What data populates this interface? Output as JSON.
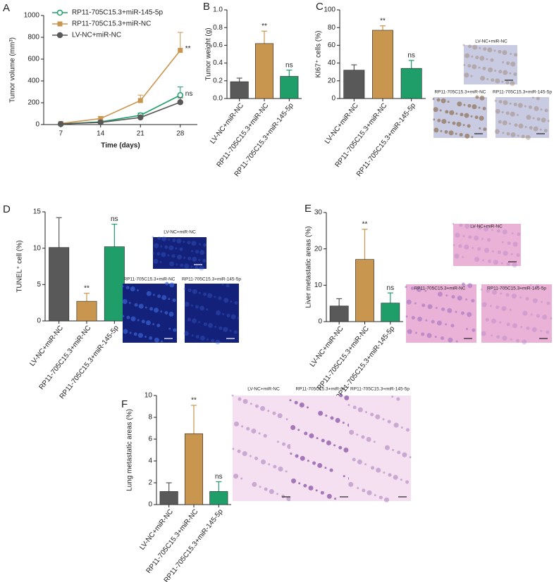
{
  "chart_data": [
    {
      "type": "line",
      "panel": "A",
      "ylabel": "Tumor volume (mm³)",
      "xlabel": "Time (days)",
      "x": [
        7,
        14,
        21,
        28
      ],
      "xlim": [
        4,
        31
      ],
      "xticks": [
        7,
        14,
        21,
        28
      ],
      "ylim": [
        0,
        1000
      ],
      "yticks": [
        0,
        200,
        400,
        600,
        800,
        1000
      ],
      "legend": "top-left",
      "series": [
        {
          "name": "RP11-705C15.3+miR-145-5p",
          "color": "#1f9e6a",
          "marker": "open-circle",
          "values": [
            5,
            25,
            85,
            270
          ],
          "errors": [
            3,
            8,
            20,
            75
          ],
          "annotation": "ns"
        },
        {
          "name": "RP11-705C15.3+miR-NC",
          "color": "#c8964f",
          "marker": "square",
          "values": [
            10,
            55,
            220,
            680
          ],
          "errors": [
            5,
            20,
            50,
            165
          ],
          "annotation": "**"
        },
        {
          "name": "LV-NC+miR-NC",
          "color": "#595959",
          "marker": "circle",
          "values": [
            5,
            20,
            65,
            205
          ],
          "errors": [
            3,
            6,
            15,
            40
          ]
        }
      ]
    },
    {
      "type": "bar",
      "panel": "B",
      "ylabel": "Tumor weight (g)",
      "categories": [
        "LV-NC+miR-NC",
        "RP11-705C15.3+miR-NC",
        "RP11-705C15.3+miR-145-5p"
      ],
      "values": [
        0.19,
        0.62,
        0.25
      ],
      "errors": [
        0.04,
        0.14,
        0.07
      ],
      "colors": [
        "#595959",
        "#c8964f",
        "#1f9e6a"
      ],
      "annotations": [
        null,
        "**",
        "ns"
      ],
      "ylim": [
        0,
        1
      ],
      "yticks": [
        {
          "value": 0,
          "label": "0.0"
        },
        0.2,
        0.4,
        0.6,
        0.8,
        {
          "value": 1,
          "label": "1.0"
        }
      ]
    },
    {
      "type": "bar",
      "panel": "C",
      "ylabel": "KI67⁺ cells (%)",
      "categories": [
        "LV-NC+miR-NC",
        "RP11-705C15.3+miR-NC",
        "RP11-705C15.3+miR-145-5p"
      ],
      "values": [
        32,
        77,
        34
      ],
      "errors": [
        6,
        5,
        9
      ],
      "colors": [
        "#595959",
        "#c8964f",
        "#1f9e6a"
      ],
      "annotations": [
        null,
        "**",
        "ns"
      ],
      "ylim": [
        0,
        100
      ],
      "yticks": [
        0,
        20,
        40,
        60,
        80,
        100
      ],
      "images": [
        "LV-NC+miR-NC",
        "RP11-705C15.3+miR-NC",
        "RP11-705C15.3+miR-145-5p"
      ]
    },
    {
      "type": "bar",
      "panel": "D",
      "ylabel": "TUNEL⁺ cell (%)",
      "categories": [
        "LV-NC+miR-NC",
        "RP11-705C15.3+miR-NC",
        "RP11-705C15.3+miR-145-5p"
      ],
      "values": [
        10.1,
        2.7,
        10.2
      ],
      "errors": [
        4.1,
        1.1,
        3.1
      ],
      "colors": [
        "#595959",
        "#c8964f",
        "#1f9e6a"
      ],
      "annotations": [
        null,
        "**",
        "ns"
      ],
      "ylim": [
        0,
        15
      ],
      "yticks": [
        0,
        5,
        10,
        15
      ],
      "images": [
        "LV-NC+miR-NC",
        "RP11-705C15.3+miR-NC",
        "RP11-705C15.3+miR-145-5p"
      ]
    },
    {
      "type": "bar",
      "panel": "E",
      "ylabel": "Liver metastatic areas (%)",
      "categories": [
        "LV-NC+miR-NC",
        "RP11-705C15.3+miR-NC",
        "RP11-705C15.3+miR-145-5p"
      ],
      "values": [
        4.3,
        17.1,
        5.1
      ],
      "errors": [
        2.0,
        8.3,
        2.8
      ],
      "colors": [
        "#595959",
        "#c8964f",
        "#1f9e6a"
      ],
      "annotations": [
        null,
        "**",
        "ns"
      ],
      "ylim": [
        0,
        30
      ],
      "yticks": [
        0,
        10,
        20,
        30
      ],
      "images": [
        "LV-NC+miR-NC",
        "RP11-705C15.3+miR-NC",
        "RP11-705C15.3+miR-145-5p"
      ]
    },
    {
      "type": "bar",
      "panel": "F",
      "ylabel": "Lung metastatic areas (%)",
      "categories": [
        "LV-NC+miR-NC",
        "RP11-705C15.3+miR-NC",
        "RP11-705C15.3+miR-145-5p"
      ],
      "values": [
        1.2,
        6.5,
        1.2
      ],
      "errors": [
        0.8,
        2.6,
        0.9
      ],
      "colors": [
        "#595959",
        "#c8964f",
        "#1f9e6a"
      ],
      "annotations": [
        null,
        "**",
        "ns"
      ],
      "ylim": [
        0,
        10
      ],
      "yticks": [
        0,
        2,
        4,
        6,
        8,
        10
      ],
      "images": [
        "LV-NC+miR-NC",
        "RP11-705C15.3+miR-NC",
        "RP11-705C15.3+miR-145-5p"
      ]
    }
  ]
}
